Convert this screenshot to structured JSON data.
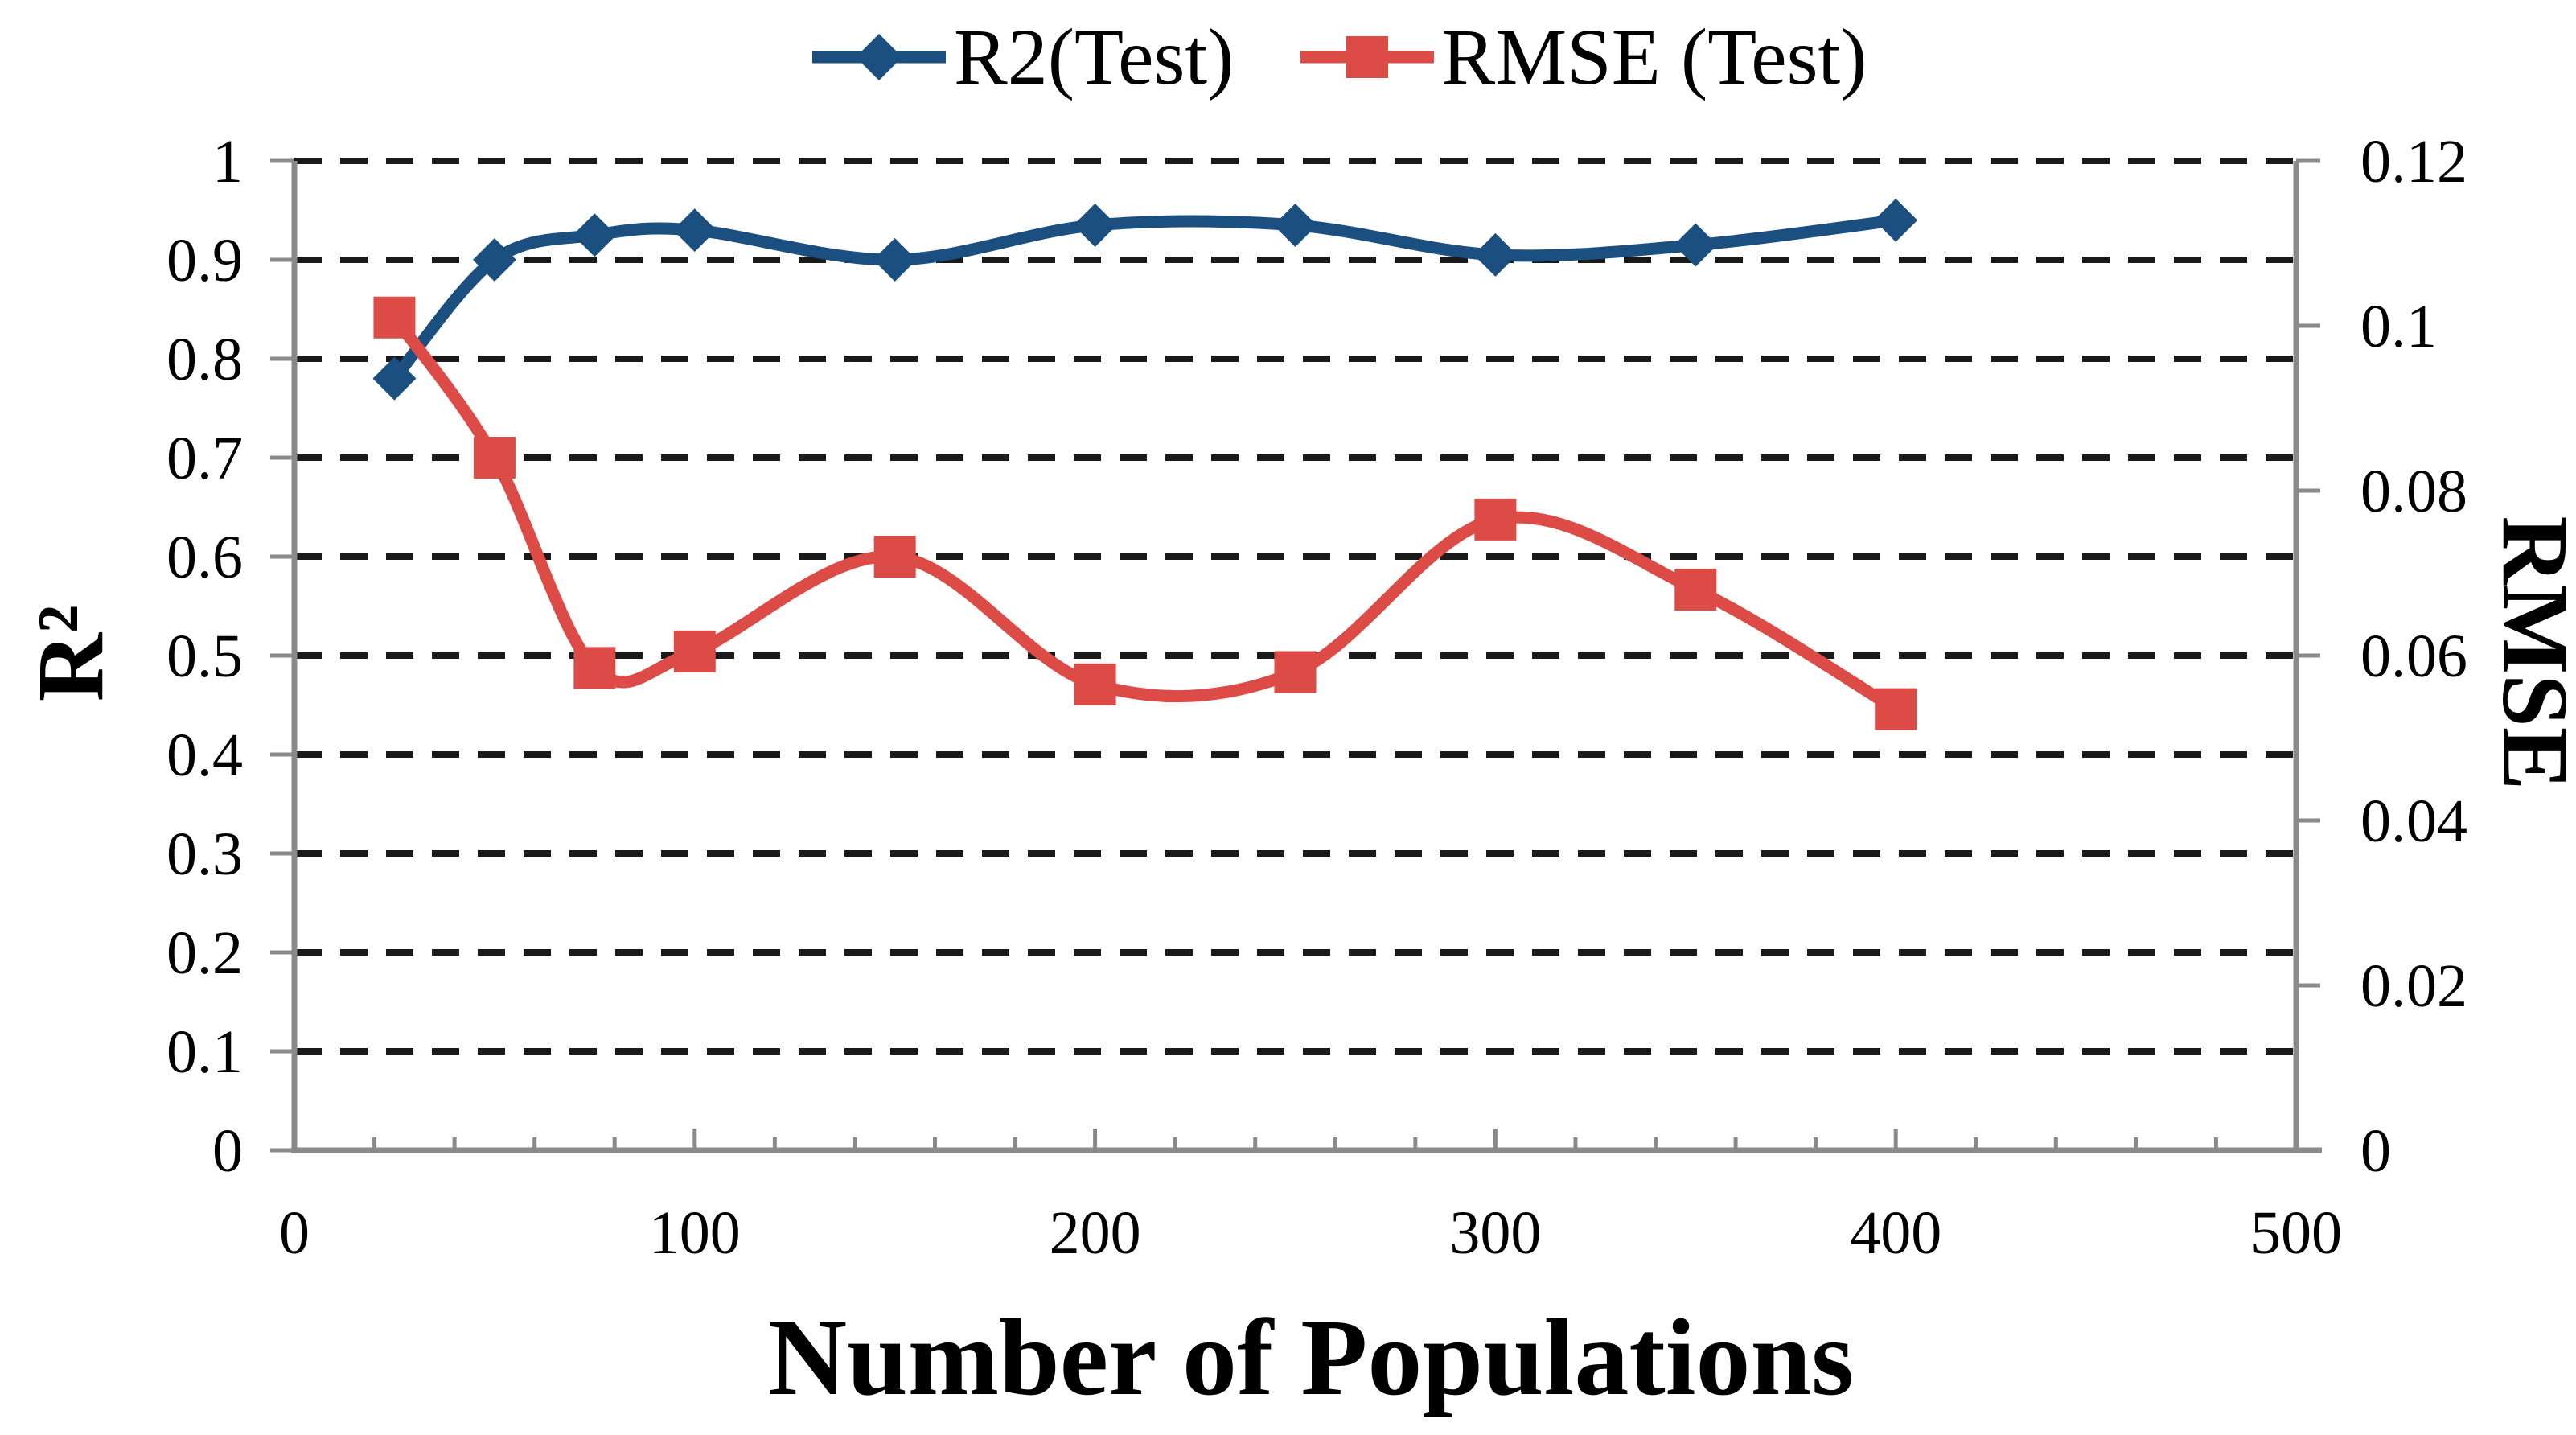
{
  "chart_data": {
    "type": "line",
    "x": [
      25,
      50,
      75,
      100,
      150,
      200,
      250,
      300,
      350,
      400
    ],
    "series": [
      {
        "name": "R2(Test)",
        "axis": "left",
        "color": "#1B4F80",
        "marker": "diamond",
        "values": [
          0.78,
          0.9,
          0.925,
          0.93,
          0.9,
          0.935,
          0.935,
          0.905,
          0.915,
          0.94
        ]
      },
      {
        "name": "RMSE (Test)",
        "axis": "right",
        "color": "#DC4B45",
        "marker": "square",
        "values": [
          0.101,
          0.084,
          0.0585,
          0.0605,
          0.072,
          0.0565,
          0.058,
          0.0765,
          0.068,
          0.0535
        ]
      }
    ],
    "x_axis": {
      "label": "Number of Populations",
      "min": 0,
      "max": 500,
      "major_ticks": [
        0,
        100,
        200,
        300,
        400,
        500
      ],
      "minor_tick_step": 20
    },
    "y_left": {
      "label": "R²",
      "min": 0,
      "max": 1,
      "tick_step": 0.1,
      "ticks": [
        "1",
        "0.9",
        "0.8",
        "0.7",
        "0.6",
        "0.5",
        "0.4",
        "0.3",
        "0.2",
        "0.1",
        "0"
      ]
    },
    "y_right": {
      "label": "RMSE",
      "min": 0,
      "max": 0.12,
      "tick_step": 0.02,
      "ticks": [
        "0.12",
        "0.1",
        "0.08",
        "0.06",
        "0.04",
        "0.02",
        "0"
      ]
    },
    "grid": "dashed horizontal",
    "legend_position": "top-center",
    "line_style": "smooth"
  }
}
